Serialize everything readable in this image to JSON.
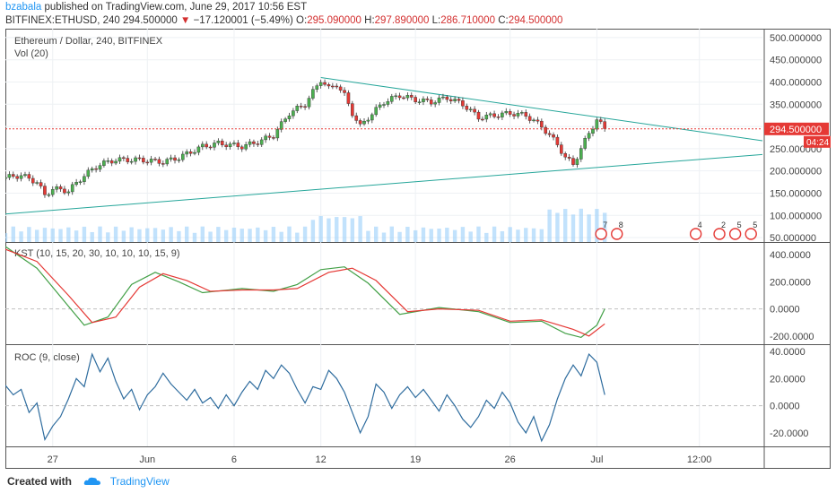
{
  "header": {
    "author": "bzabala",
    "published_text": "published on TradingView.com, June 29, 2017 10:56 EST",
    "symbol": "BITFINEX:ETHUSD, 240",
    "last": "294.500000",
    "arrow": "▼",
    "change": "−17.120001 (−5.49%)",
    "o_label": "O:",
    "o_val": "295.090000",
    "h_label": "H:",
    "h_val": "297.890000",
    "l_label": "L:",
    "l_val": "286.710000",
    "c_label": "C:",
    "c_val": "294.500000"
  },
  "footer": {
    "created": "Created with",
    "brand": "TradingView"
  },
  "colors": {
    "up": "#4caf50",
    "down": "#e53935",
    "trend": "#26a69a",
    "signal_red": "#e53935",
    "signal_green": "#43a047",
    "roc": "#2e6c9e",
    "price_tag": "#e53935",
    "volume": "#90caf9"
  },
  "chart_data": [
    {
      "type": "line",
      "title": "Ethereum / Dollar, 240, BITFINEX",
      "subtitle": "Vol (20)",
      "x_ticks": [
        "27",
        "Jun",
        "6",
        "12",
        "19",
        "26",
        "Jul",
        "12:00"
      ],
      "y_ticks": [
        "500.000000",
        "450.000000",
        "400.000000",
        "350.000000",
        "300.000000",
        "250.000000",
        "200.000000",
        "150.000000",
        "100.000000",
        "50.000000"
      ],
      "ylim": [
        40,
        520
      ],
      "last_price_label": "294.500000",
      "countdown_label": "04:24",
      "price_series": [
        {
          "x": 0,
          "y": 185
        },
        {
          "x": 2,
          "y": 190
        },
        {
          "x": 4,
          "y": 175
        },
        {
          "x": 5,
          "y": 145
        },
        {
          "x": 6,
          "y": 160
        },
        {
          "x": 8,
          "y": 155
        },
        {
          "x": 10,
          "y": 190
        },
        {
          "x": 12,
          "y": 215
        },
        {
          "x": 14,
          "y": 225
        },
        {
          "x": 17,
          "y": 225
        },
        {
          "x": 20,
          "y": 220
        },
        {
          "x": 22,
          "y": 230
        },
        {
          "x": 25,
          "y": 255
        },
        {
          "x": 27,
          "y": 262
        },
        {
          "x": 30,
          "y": 255
        },
        {
          "x": 32,
          "y": 265
        },
        {
          "x": 34,
          "y": 280
        },
        {
          "x": 36,
          "y": 330
        },
        {
          "x": 38,
          "y": 350
        },
        {
          "x": 40,
          "y": 405
        },
        {
          "x": 41,
          "y": 385
        },
        {
          "x": 42,
          "y": 395
        },
        {
          "x": 43,
          "y": 370
        },
        {
          "x": 44,
          "y": 330
        },
        {
          "x": 45,
          "y": 300
        },
        {
          "x": 46,
          "y": 320
        },
        {
          "x": 48,
          "y": 355
        },
        {
          "x": 50,
          "y": 370
        },
        {
          "x": 52,
          "y": 360
        },
        {
          "x": 54,
          "y": 355
        },
        {
          "x": 56,
          "y": 365
        },
        {
          "x": 58,
          "y": 350
        },
        {
          "x": 60,
          "y": 320
        },
        {
          "x": 62,
          "y": 325
        },
        {
          "x": 64,
          "y": 330
        },
        {
          "x": 66,
          "y": 325
        },
        {
          "x": 68,
          "y": 300
        },
        {
          "x": 70,
          "y": 260
        },
        {
          "x": 71,
          "y": 230
        },
        {
          "x": 72,
          "y": 215
        },
        {
          "x": 73,
          "y": 250
        },
        {
          "x": 74,
          "y": 285
        },
        {
          "x": 75,
          "y": 315
        },
        {
          "x": 76,
          "y": 295
        }
      ],
      "upper_trend": [
        {
          "x": 40,
          "y": 410
        },
        {
          "x": 96,
          "y": 268
        }
      ],
      "lower_trend": [
        {
          "x": 0,
          "y": 103
        },
        {
          "x": 96,
          "y": 237
        }
      ],
      "volume_labels": [
        "7",
        "8",
        "4",
        "2",
        "5",
        "5"
      ]
    },
    {
      "type": "line",
      "title": "KST (10, 15, 20, 30, 10, 10, 10, 15, 9)",
      "y_ticks": [
        "400.0000",
        "200.0000",
        "0.0000",
        "-200.0000"
      ],
      "ylim": [
        -260,
        480
      ],
      "series": [
        {
          "values": [
            {
              "x": 0,
              "y": 460
            },
            {
              "x": 4,
              "y": 300
            },
            {
              "x": 8,
              "y": 20
            },
            {
              "x": 10,
              "y": -120
            },
            {
              "x": 13,
              "y": -60
            },
            {
              "x": 16,
              "y": 180
            },
            {
              "x": 19,
              "y": 270
            },
            {
              "x": 22,
              "y": 200
            },
            {
              "x": 25,
              "y": 120
            },
            {
              "x": 30,
              "y": 150
            },
            {
              "x": 34,
              "y": 130
            },
            {
              "x": 37,
              "y": 180
            },
            {
              "x": 40,
              "y": 290
            },
            {
              "x": 43,
              "y": 310
            },
            {
              "x": 46,
              "y": 190
            },
            {
              "x": 50,
              "y": -40
            },
            {
              "x": 55,
              "y": 10
            },
            {
              "x": 60,
              "y": -20
            },
            {
              "x": 64,
              "y": -100
            },
            {
              "x": 68,
              "y": -90
            },
            {
              "x": 71,
              "y": -180
            },
            {
              "x": 73,
              "y": -210
            },
            {
              "x": 75,
              "y": -120
            },
            {
              "x": 76,
              "y": 0
            }
          ]
        },
        {
          "values": [
            {
              "x": 0,
              "y": 440
            },
            {
              "x": 4,
              "y": 350
            },
            {
              "x": 8,
              "y": 100
            },
            {
              "x": 11,
              "y": -100
            },
            {
              "x": 14,
              "y": -60
            },
            {
              "x": 17,
              "y": 160
            },
            {
              "x": 20,
              "y": 260
            },
            {
              "x": 23,
              "y": 210
            },
            {
              "x": 26,
              "y": 130
            },
            {
              "x": 30,
              "y": 140
            },
            {
              "x": 34,
              "y": 140
            },
            {
              "x": 37,
              "y": 150
            },
            {
              "x": 41,
              "y": 270
            },
            {
              "x": 44,
              "y": 300
            },
            {
              "x": 47,
              "y": 210
            },
            {
              "x": 51,
              "y": -20
            },
            {
              "x": 55,
              "y": 0
            },
            {
              "x": 60,
              "y": -10
            },
            {
              "x": 64,
              "y": -90
            },
            {
              "x": 68,
              "y": -80
            },
            {
              "x": 72,
              "y": -150
            },
            {
              "x": 74,
              "y": -200
            },
            {
              "x": 76,
              "y": -110
            }
          ]
        }
      ]
    },
    {
      "type": "line",
      "title": "ROC (9, close)",
      "y_ticks": [
        "40.0000",
        "20.0000",
        "0.0000",
        "-20.0000"
      ],
      "ylim": [
        -30,
        44
      ],
      "series": [
        {
          "values": [
            {
              "x": 0,
              "y": 15
            },
            {
              "x": 1,
              "y": 8
            },
            {
              "x": 2,
              "y": 12
            },
            {
              "x": 3,
              "y": -5
            },
            {
              "x": 4,
              "y": 2
            },
            {
              "x": 5,
              "y": -25
            },
            {
              "x": 6,
              "y": -15
            },
            {
              "x": 7,
              "y": -8
            },
            {
              "x": 8,
              "y": 5
            },
            {
              "x": 9,
              "y": 20
            },
            {
              "x": 10,
              "y": 14
            },
            {
              "x": 11,
              "y": 38
            },
            {
              "x": 12,
              "y": 25
            },
            {
              "x": 13,
              "y": 35
            },
            {
              "x": 14,
              "y": 18
            },
            {
              "x": 15,
              "y": 5
            },
            {
              "x": 16,
              "y": 12
            },
            {
              "x": 17,
              "y": -3
            },
            {
              "x": 18,
              "y": 8
            },
            {
              "x": 19,
              "y": 14
            },
            {
              "x": 20,
              "y": 24
            },
            {
              "x": 21,
              "y": 16
            },
            {
              "x": 22,
              "y": 10
            },
            {
              "x": 23,
              "y": 4
            },
            {
              "x": 24,
              "y": 12
            },
            {
              "x": 25,
              "y": 2
            },
            {
              "x": 26,
              "y": 6
            },
            {
              "x": 27,
              "y": -2
            },
            {
              "x": 28,
              "y": 8
            },
            {
              "x": 29,
              "y": 0
            },
            {
              "x": 30,
              "y": 10
            },
            {
              "x": 31,
              "y": 18
            },
            {
              "x": 32,
              "y": 12
            },
            {
              "x": 33,
              "y": 26
            },
            {
              "x": 34,
              "y": 20
            },
            {
              "x": 35,
              "y": 30
            },
            {
              "x": 36,
              "y": 24
            },
            {
              "x": 37,
              "y": 12
            },
            {
              "x": 38,
              "y": 2
            },
            {
              "x": 39,
              "y": 14
            },
            {
              "x": 40,
              "y": 12
            },
            {
              "x": 41,
              "y": 26
            },
            {
              "x": 42,
              "y": 20
            },
            {
              "x": 43,
              "y": 10
            },
            {
              "x": 44,
              "y": -5
            },
            {
              "x": 45,
              "y": -20
            },
            {
              "x": 46,
              "y": -8
            },
            {
              "x": 47,
              "y": 16
            },
            {
              "x": 48,
              "y": 10
            },
            {
              "x": 49,
              "y": -2
            },
            {
              "x": 50,
              "y": 8
            },
            {
              "x": 51,
              "y": 14
            },
            {
              "x": 52,
              "y": 6
            },
            {
              "x": 53,
              "y": 12
            },
            {
              "x": 54,
              "y": 4
            },
            {
              "x": 55,
              "y": -4
            },
            {
              "x": 56,
              "y": 8
            },
            {
              "x": 57,
              "y": 0
            },
            {
              "x": 58,
              "y": -10
            },
            {
              "x": 59,
              "y": -16
            },
            {
              "x": 60,
              "y": -8
            },
            {
              "x": 61,
              "y": 4
            },
            {
              "x": 62,
              "y": -2
            },
            {
              "x": 63,
              "y": 10
            },
            {
              "x": 64,
              "y": 2
            },
            {
              "x": 65,
              "y": -12
            },
            {
              "x": 66,
              "y": -20
            },
            {
              "x": 67,
              "y": -8
            },
            {
              "x": 68,
              "y": -26
            },
            {
              "x": 69,
              "y": -14
            },
            {
              "x": 70,
              "y": 5
            },
            {
              "x": 71,
              "y": 20
            },
            {
              "x": 72,
              "y": 30
            },
            {
              "x": 73,
              "y": 22
            },
            {
              "x": 74,
              "y": 38
            },
            {
              "x": 75,
              "y": 32
            },
            {
              "x": 76,
              "y": 8
            }
          ]
        }
      ]
    }
  ]
}
